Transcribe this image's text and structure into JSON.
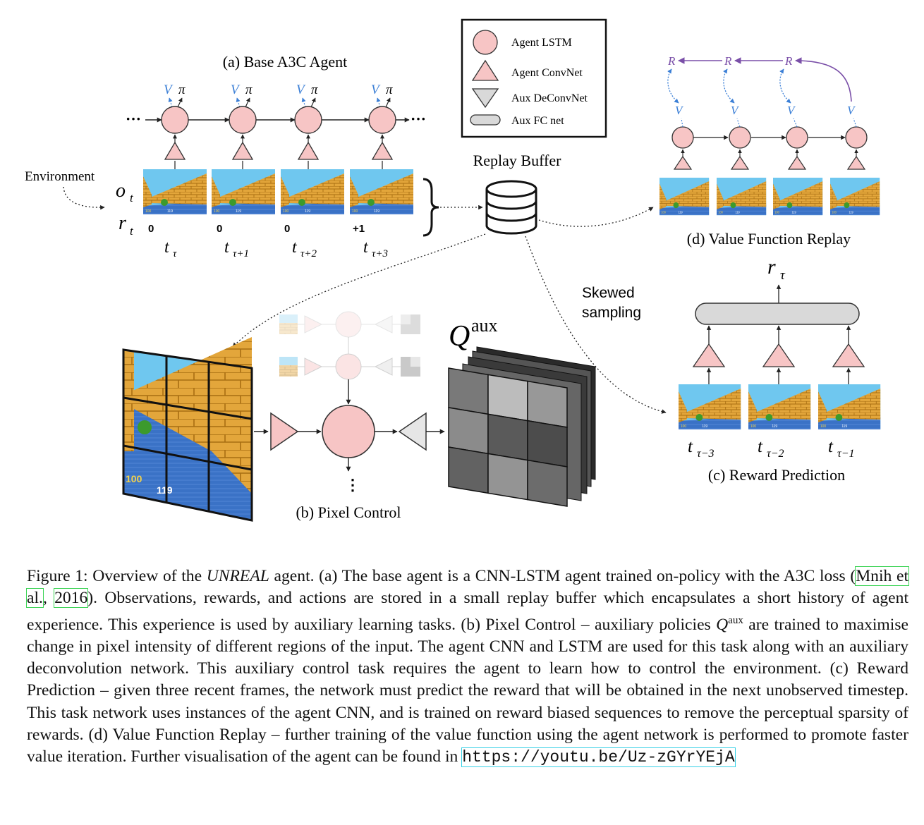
{
  "figure": {
    "panel_a_title": "(a) Base A3C Agent",
    "panel_b_title": "(b) Pixel Control",
    "panel_c_title": "(c) Reward Prediction",
    "panel_d_title": "(d) Value Function Replay",
    "environment_label": "Environment",
    "replay_buffer_label": "Replay Buffer",
    "skewed_sampling_line1": "Skewed",
    "skewed_sampling_line2": "sampling",
    "o_t": "o",
    "o_t_sub": "t",
    "r_t": "r",
    "r_t_sub": "t",
    "V": "V",
    "pi": "π",
    "R": "R",
    "dots": "···",
    "rewards": [
      "0",
      "0",
      "0",
      "+1"
    ],
    "time_labels": [
      {
        "base": "t",
        "sub": "τ"
      },
      {
        "base": "t",
        "sub": "τ+1"
      },
      {
        "base": "t",
        "sub": "τ+2"
      },
      {
        "base": "t",
        "sub": "τ+3"
      }
    ],
    "reward_time_labels": [
      {
        "base": "t",
        "sub": "τ−3"
      },
      {
        "base": "t",
        "sub": "τ−2"
      },
      {
        "base": "t",
        "sub": "τ−1"
      }
    ],
    "r_tau": "r",
    "r_tau_sub": "τ",
    "q_aux": "Q",
    "q_aux_sup": "aux",
    "hud_ammo": "100",
    "hud_health": "119",
    "legend": [
      {
        "label": "Agent LSTM",
        "shape": "circle"
      },
      {
        "label": "Agent ConvNet",
        "shape": "triangle-up"
      },
      {
        "label": "Aux DeConvNet",
        "shape": "triangle-down"
      },
      {
        "label": "Aux FC net",
        "shape": "rounded-rect"
      }
    ],
    "q_grid_values": [
      [
        0.45,
        0.82,
        0.62
      ],
      [
        0.55,
        0.28,
        0.2
      ],
      [
        0.32,
        0.6,
        0.38
      ]
    ],
    "colors": {
      "lstm_fill": "#f7c5c5",
      "accent_blue": "#3b7fd6",
      "accent_purple": "#7a4fa8",
      "sky": "#6fc7ef",
      "wall": "#e0a43a",
      "floor": "#3b74c9"
    }
  },
  "caption": {
    "figure_label": "Figure 1:",
    "t1": " Overview of the ",
    "agent_name": "UNREAL",
    "t2": " agent.  (a) The base agent is a CNN-LSTM agent trained on-policy with the A3C loss (",
    "cite_authors": "Mnih et al.",
    "t3": ", ",
    "cite_year": "2016",
    "t4": "). Observations, rewards, and actions are stored in a small replay buffer which encapsulates a short history of agent experience. This experience is used by auxiliary learning tasks. (b) Pixel Control – auxiliary policies ",
    "q": "Q",
    "q_sup": "aux",
    "t5": " are trained to maximise change in pixel intensity of different regions of the input. The agent CNN and LSTM are used for this task along with an auxiliary deconvolution network. This auxiliary control task requires the agent to learn how to control the environment. (c) Reward Prediction – given three recent frames, the network must predict the reward that will be obtained in the next unobserved timestep. This task network uses instances of the agent CNN, and is trained on reward biased sequences to remove the perceptual sparsity of rewards.  (d) Value Function Replay – further training of the value function using the agent network is performed to promote faster value iteration. Further visualisation of the agent can be found in ",
    "url": "https://youtu.be/Uz-zGYrYEjA"
  }
}
